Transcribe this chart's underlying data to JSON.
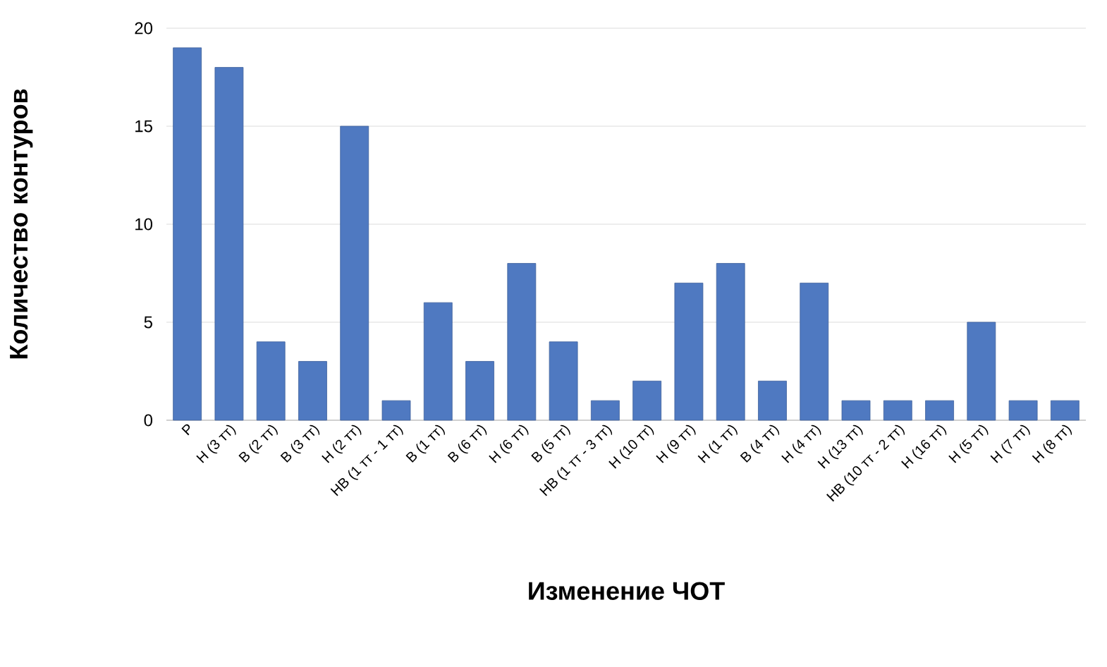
{
  "chart_data": {
    "type": "bar",
    "xlabel": "Изменение ЧОТ",
    "ylabel": "Количество контуров",
    "categories": [
      "Р",
      "Н (3 тт)",
      "В (2 тт)",
      "В (3 тт)",
      "Н (2 тт)",
      "НВ (1 тт - 1 тт)",
      "В (1 тт)",
      "В (6 тт)",
      "Н (6 тт)",
      "В (5 тт)",
      "НВ (1 тт - 3 тт)",
      "Н (10 тт)",
      "Н (9 тт)",
      "Н (1 тт)",
      "В (4 тт)",
      "Н (4 тт)",
      "Н (13 тт)",
      "НВ (10 тт - 2 тт)",
      "Н (16 тт)",
      "Н (5 тт)",
      "Н (7 тт)",
      "Н (8 тт)"
    ],
    "values": [
      19,
      18,
      4,
      3,
      15,
      1,
      6,
      3,
      8,
      4,
      1,
      2,
      7,
      8,
      2,
      7,
      1,
      1,
      1,
      5,
      1,
      1
    ],
    "color": "#4f79c1",
    "ylim": [
      0,
      20
    ],
    "yticks": [
      0,
      5,
      10,
      15,
      20
    ],
    "grid": "y"
  }
}
